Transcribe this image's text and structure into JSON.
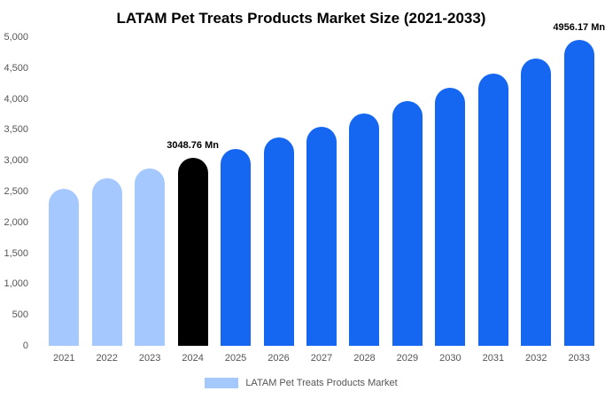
{
  "chart_data": {
    "type": "bar",
    "title": "LATAM Pet Treats Products Market Size (2021-2033)",
    "unit": "Mn",
    "categories": [
      "2021",
      "2022",
      "2023",
      "2024",
      "2025",
      "2026",
      "2027",
      "2028",
      "2029",
      "2030",
      "2031",
      "2032",
      "2033"
    ],
    "values": [
      2550,
      2710,
      2880,
      3048.76,
      3190,
      3370,
      3550,
      3760,
      3960,
      4180,
      4410,
      4660,
      4956.17
    ],
    "bar_colors": [
      "#A5C9FF",
      "#A5C9FF",
      "#A5C9FF",
      "#000000",
      "#1567F2",
      "#1567F2",
      "#1567F2",
      "#1567F2",
      "#1567F2",
      "#1567F2",
      "#1567F2",
      "#1567F2",
      "#1567F2"
    ],
    "ylim": [
      0,
      5000
    ],
    "yticks": [
      0,
      500,
      1000,
      1500,
      2000,
      2500,
      3000,
      3500,
      4000,
      4500,
      5000
    ],
    "ytick_labels": [
      "0",
      "500",
      "1,000",
      "1,500",
      "2,000",
      "2,500",
      "3,000",
      "3,500",
      "4,000",
      "4,500",
      "5,000"
    ],
    "annotations": [
      {
        "category": "2024",
        "text": "3048.76 Mn"
      },
      {
        "category": "2033",
        "text": "4956.17 Mn"
      }
    ],
    "grid": false,
    "legend_position": "bottom",
    "xlabel": "",
    "ylabel": "",
    "legend": {
      "label": "LATAM Pet Treats Products Market",
      "swatch_color": "#A5C9FF"
    }
  }
}
